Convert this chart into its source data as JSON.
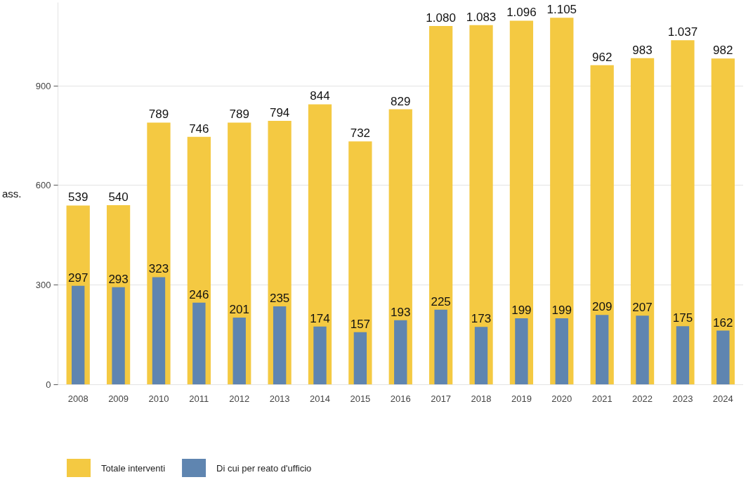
{
  "chart_data": {
    "type": "bar",
    "ylabel": "ass.",
    "categories": [
      "2008",
      "2009",
      "2010",
      "2011",
      "2012",
      "2013",
      "2014",
      "2015",
      "2016",
      "2017",
      "2018",
      "2019",
      "2020",
      "2021",
      "2022",
      "2023",
      "2024"
    ],
    "series": [
      {
        "name": "Totale interventi",
        "color": "#f4c942",
        "values": [
          539,
          540,
          789,
          746,
          789,
          794,
          844,
          732,
          829,
          1080,
          1083,
          1096,
          1105,
          962,
          983,
          1037,
          982
        ],
        "value_labels": [
          "539",
          "540",
          "789",
          "746",
          "789",
          "794",
          "844",
          "732",
          "829",
          "1.080",
          "1.083",
          "1.096",
          "1.105",
          "962",
          "983",
          "1.037",
          "982"
        ]
      },
      {
        "name": "Di cui per reato d'ufficio",
        "color": "#5f85b0",
        "values": [
          297,
          293,
          323,
          246,
          201,
          235,
          174,
          157,
          193,
          225,
          173,
          199,
          199,
          209,
          207,
          175,
          162
        ],
        "value_labels": [
          "297",
          "293",
          "323",
          "246",
          "201",
          "235",
          "174",
          "157",
          "193",
          "225",
          "173",
          "199",
          "199",
          "209",
          "207",
          "175",
          "162"
        ]
      }
    ],
    "ylim": [
      0,
      1150
    ],
    "yticks": [
      0,
      300,
      600,
      900
    ],
    "grid": "y",
    "legend": "bottom left"
  }
}
